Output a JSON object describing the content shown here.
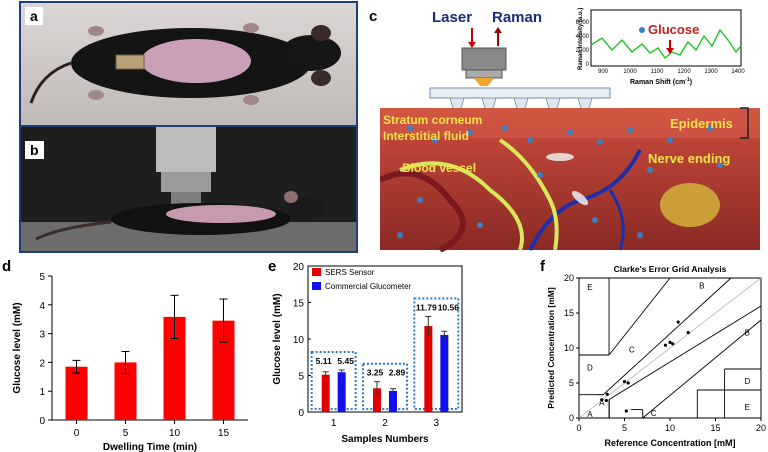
{
  "panels": {
    "a": "a",
    "b": "b",
    "c": "c",
    "d": "d",
    "e": "e",
    "f": "f"
  },
  "schematic": {
    "laser": "Laser",
    "raman": "Raman",
    "stratum": "Stratum corneum",
    "interstitial": "Interstitial fluid",
    "epidermis": "Epidermis",
    "blood_vessel": "Blood vessel",
    "nerve": "Nerve ending",
    "glucose": "Glucose",
    "inset_xlabel": "Raman Shift (cm",
    "inset_xlabel_sup": "-1",
    "inset_xlabel_end": ")",
    "inset_ylabel": "Raman Intensity (a.u.)",
    "inset_xticks": [
      "900",
      "1000",
      "1100",
      "1200",
      "1300",
      "1400"
    ],
    "inset_yticks": [
      "0",
      "2000",
      "4000",
      "6000"
    ]
  },
  "chart_data": [
    {
      "type": "bar",
      "panel": "d",
      "categories": [
        "0",
        "5",
        "10",
        "15"
      ],
      "values": [
        1.85,
        2.0,
        3.58,
        3.45
      ],
      "errors": [
        0.22,
        0.38,
        0.75,
        0.75
      ],
      "xlabel": "Dwelling Time (min)",
      "ylabel": "Glucose level (mM)",
      "ylim": [
        0,
        5
      ],
      "yticks": [
        "0",
        "1",
        "2",
        "3",
        "4",
        "5"
      ],
      "color": "#ff0000"
    },
    {
      "type": "bar",
      "panel": "e",
      "categories": [
        "1",
        "2",
        "3"
      ],
      "xlabel": "Samples Numbers",
      "ylabel": "Glucose level (mM)",
      "ylim": [
        0,
        20
      ],
      "yticks": [
        "0",
        "5",
        "10",
        "15",
        "20"
      ],
      "series": [
        {
          "name": "SERS Sensor",
          "color": "#e00000",
          "values": [
            5.11,
            3.25,
            11.79
          ],
          "labels": [
            "5.11",
            "3.25",
            "11.79"
          ],
          "errors": [
            0.4,
            0.9,
            1.3
          ]
        },
        {
          "name": "Commercial Glucometer",
          "color": "#1010ee",
          "values": [
            5.45,
            2.89,
            10.56
          ],
          "labels": [
            "5.45",
            "2.89",
            "10.56"
          ],
          "errors": [
            0.3,
            0.3,
            0.5
          ]
        }
      ]
    },
    {
      "type": "scatter",
      "panel": "f",
      "title": "Clarke's Error Grid Analysis",
      "xlabel": "Reference Concentration [mM]",
      "ylabel": "Predicted Concentration [mM]",
      "xlim": [
        0,
        20
      ],
      "ylim": [
        0,
        20
      ],
      "xticks": [
        "0",
        "5",
        "10",
        "15",
        "20"
      ],
      "yticks": [
        "0",
        "5",
        "10",
        "15",
        "20"
      ],
      "zones": [
        "A",
        "A",
        "B",
        "B",
        "C",
        "C",
        "D",
        "D",
        "E",
        "E"
      ],
      "points": [
        [
          2.5,
          2.6
        ],
        [
          3.0,
          2.5
        ],
        [
          3.1,
          3.4
        ],
        [
          5.0,
          5.2
        ],
        [
          5.4,
          5.0
        ],
        [
          5.2,
          1.0
        ],
        [
          9.5,
          10.4
        ],
        [
          10.0,
          10.8
        ],
        [
          10.3,
          10.6
        ],
        [
          10.9,
          13.7
        ],
        [
          12.0,
          12.2
        ]
      ]
    }
  ]
}
